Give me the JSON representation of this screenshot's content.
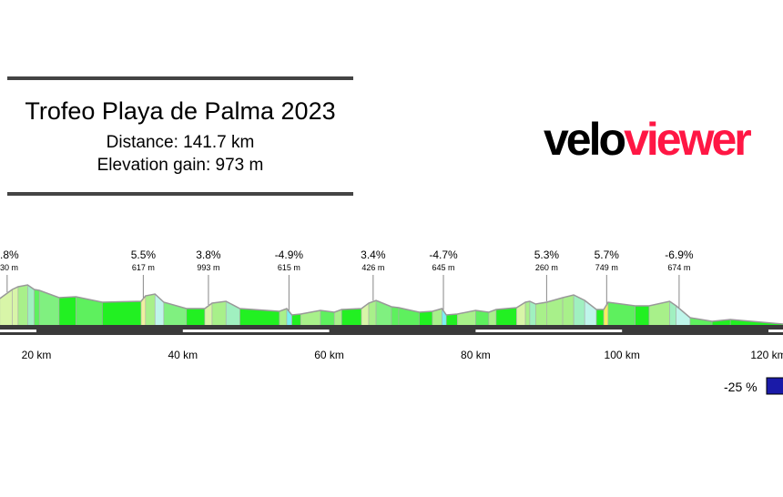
{
  "header": {
    "title": "Trofeo Playa de Palma 2023",
    "distance": "Distance: 141.7 km",
    "elevation_gain": "Elevation gain: 973 m"
  },
  "logo": {
    "part1": "velo",
    "part2": "viewer",
    "colors": {
      "part1": "#000000",
      "part2": "#ff1744"
    }
  },
  "legend": {
    "label": "-25 %",
    "color": "#1a1aa8"
  },
  "chart_data": {
    "type": "area",
    "title": "Trofeo Playa de Palma 2023",
    "xlabel": "",
    "ylabel": "",
    "x_unit": "km",
    "xlim": [
      15,
      122
    ],
    "x_ticks": [
      {
        "km": 20,
        "label": "20 km"
      },
      {
        "km": 40,
        "label": "40 km"
      },
      {
        "km": 60,
        "label": "60 km"
      },
      {
        "km": 80,
        "label": "80 km"
      },
      {
        "km": 100,
        "label": "100 km"
      },
      {
        "km": 120,
        "label": "120 km"
      }
    ],
    "profile": {
      "km": [
        15.0,
        16.7,
        17.5,
        18.8,
        19.7,
        20.4,
        23.1,
        25.4,
        29.0,
        34.3,
        34.9,
        36.2,
        37.4,
        40.5,
        43.0,
        44.0,
        45.9,
        47.8,
        53.2,
        54.2,
        54.9,
        56.1,
        58.8,
        60.7,
        61.7,
        64.4,
        65.4,
        66.4,
        68.5,
        69.5,
        72.3,
        74.1,
        75.4,
        76.0,
        77.5,
        80.0,
        81.8,
        82.8,
        85.6,
        86.8,
        87.4,
        88.2,
        89.7,
        91.9,
        93.4,
        94.9,
        96.5,
        97.5,
        98.1,
        101.8,
        103.7,
        106.5,
        107.4,
        109.3,
        112.3,
        114.8,
        122.0
      ],
      "elevation_m": [
        120,
        160,
        172,
        180,
        160,
        156,
        124,
        128,
        104,
        108,
        132,
        140,
        104,
        76,
        76,
        100,
        108,
        76,
        64,
        76,
        48,
        52,
        68,
        60,
        72,
        76,
        100,
        112,
        84,
        80,
        60,
        64,
        76,
        48,
        52,
        68,
        60,
        72,
        80,
        104,
        108,
        96,
        104,
        124,
        136,
        112,
        72,
        72,
        104,
        88,
        88,
        108,
        88,
        36,
        20,
        28,
        8
      ]
    },
    "annotations": [
      {
        "km": 16.0,
        "gradient": ".8%",
        "length": "30 m"
      },
      {
        "km": 34.6,
        "gradient": "5.5%",
        "length": "617 m"
      },
      {
        "km": 43.5,
        "gradient": "3.8%",
        "length": "993 m"
      },
      {
        "km": 54.5,
        "gradient": "-4.9%",
        "length": "615 m"
      },
      {
        "km": 66.0,
        "gradient": "3.4%",
        "length": "426 m"
      },
      {
        "km": 75.6,
        "gradient": "-4.7%",
        "length": "645 m"
      },
      {
        "km": 89.7,
        "gradient": "5.3%",
        "length": "260 m"
      },
      {
        "km": 97.9,
        "gradient": "5.7%",
        "length": "749 m"
      },
      {
        "km": 107.8,
        "gradient": "-6.9%",
        "length": "674 m"
      }
    ],
    "grid": false
  }
}
